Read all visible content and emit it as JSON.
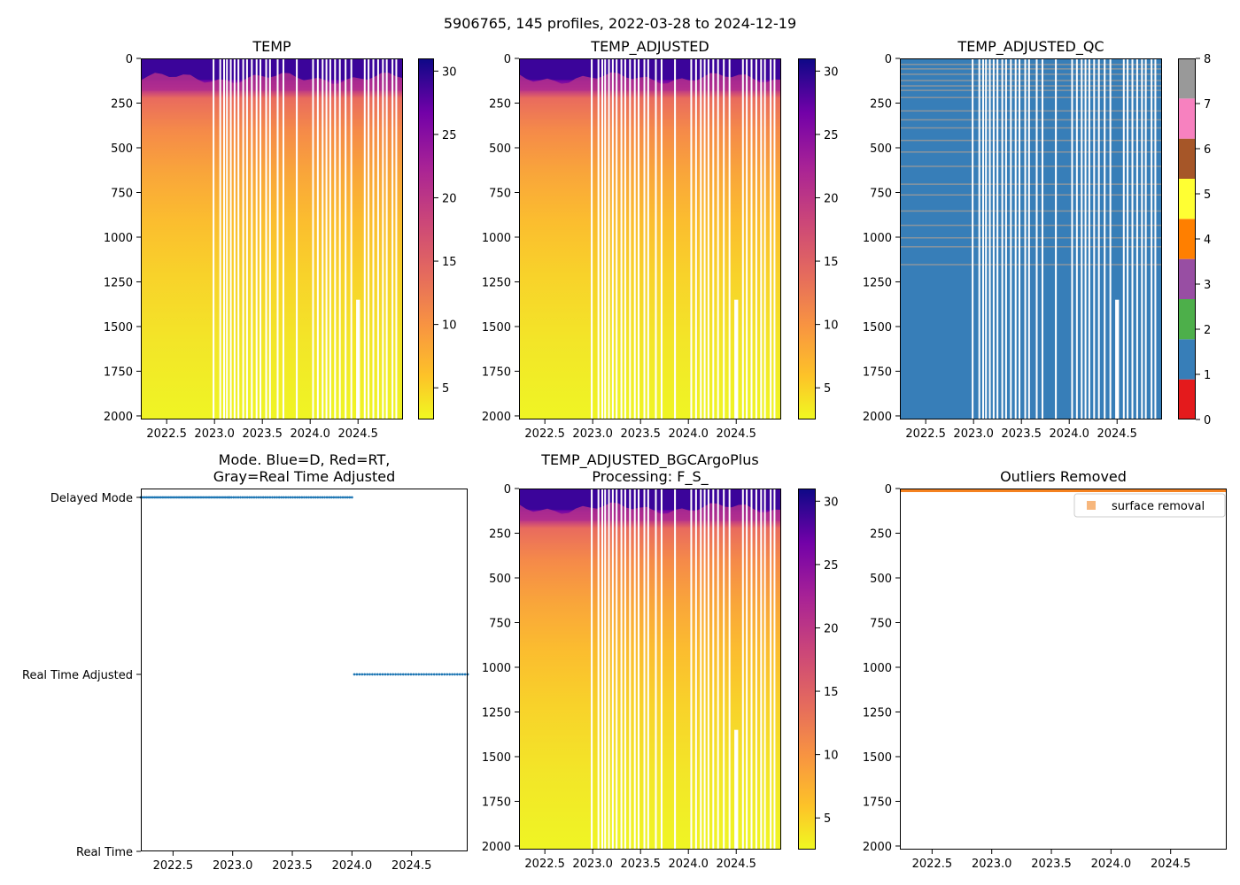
{
  "figure": {
    "suptitle": "5906765, 145 profiles, 2022-03-28 to 2024-12-19"
  },
  "colors": {
    "profile_mode_points": "#1f77b4",
    "outliers_points": "#f58220",
    "legend_marker": "#f7b77d",
    "data_gap": "#ffffff",
    "plasma_top": "#0d0887",
    "plasma_mid": "#cc4778",
    "plasma_bottom": "#f0f921"
  },
  "chart_data": [
    {
      "id": "temp",
      "type": "heatmap",
      "title": "TEMP",
      "x_ticks": [
        "2022.5",
        "2023.0",
        "2023.5",
        "2024.0",
        "2024.5"
      ],
      "x_tick_values": [
        2022.5,
        2023.0,
        2023.5,
        2024.0,
        2024.5
      ],
      "xlim": [
        2022.23,
        2024.97
      ],
      "y_ticks": [
        "0",
        "250",
        "500",
        "750",
        "1000",
        "1250",
        "1500",
        "1750",
        "2000"
      ],
      "y_tick_values": [
        0,
        250,
        500,
        750,
        1000,
        1250,
        1500,
        1750,
        2000
      ],
      "ylim": [
        2020,
        0
      ],
      "colormap": "plasma_r",
      "colorbar_ticks": [
        "5",
        "10",
        "15",
        "20",
        "25",
        "30"
      ],
      "colorbar_tick_values": [
        5,
        10,
        15,
        20,
        25,
        30
      ],
      "colorbar_range": [
        2.5,
        31
      ],
      "mixed_layer_depth_m": 160,
      "gap_profiles": [
        2022.99,
        2023.06,
        2023.1,
        2023.13,
        2023.17,
        2023.21,
        2023.25,
        2023.3,
        2023.34,
        2023.39,
        2023.44,
        2023.48,
        2023.54,
        2023.58,
        2023.66,
        2023.72,
        2023.86,
        2024.03,
        2024.08,
        2024.13,
        2024.17,
        2024.21,
        2024.26,
        2024.31,
        2024.37,
        2024.43,
        2024.57,
        2024.61,
        2024.66,
        2024.71,
        2024.76,
        2024.8,
        2024.86,
        2024.9
      ],
      "missing_block": {
        "x_from": 2024.48,
        "x_to": 2024.52,
        "depth_from": 1350,
        "depth_to": 2020
      }
    },
    {
      "id": "temp_adjusted",
      "type": "heatmap",
      "title": "TEMP_ADJUSTED",
      "x_ticks": [
        "2022.5",
        "2023.0",
        "2023.5",
        "2024.0",
        "2024.5"
      ],
      "x_tick_values": [
        2022.5,
        2023.0,
        2023.5,
        2024.0,
        2024.5
      ],
      "xlim": [
        2022.23,
        2024.97
      ],
      "y_ticks": [
        "0",
        "250",
        "500",
        "750",
        "1000",
        "1250",
        "1500",
        "1750",
        "2000"
      ],
      "y_tick_values": [
        0,
        250,
        500,
        750,
        1000,
        1250,
        1500,
        1750,
        2000
      ],
      "ylim": [
        2020,
        0
      ],
      "colormap": "plasma_r",
      "colorbar_ticks": [
        "5",
        "10",
        "15",
        "20",
        "25",
        "30"
      ],
      "colorbar_tick_values": [
        5,
        10,
        15,
        20,
        25,
        30
      ],
      "colorbar_range": [
        2.5,
        31
      ],
      "mixed_layer_depth_m": 160,
      "gap_profiles": [
        2022.99,
        2023.06,
        2023.1,
        2023.13,
        2023.17,
        2023.21,
        2023.25,
        2023.3,
        2023.34,
        2023.39,
        2023.44,
        2023.48,
        2023.54,
        2023.58,
        2023.66,
        2023.72,
        2023.86,
        2024.03,
        2024.08,
        2024.13,
        2024.17,
        2024.21,
        2024.26,
        2024.31,
        2024.37,
        2024.43,
        2024.57,
        2024.61,
        2024.66,
        2024.71,
        2024.76,
        2024.8,
        2024.86,
        2024.9
      ],
      "missing_block": {
        "x_from": 2024.48,
        "x_to": 2024.52,
        "depth_from": 1350,
        "depth_to": 2020
      }
    },
    {
      "id": "temp_adjusted_qc",
      "type": "heatmap",
      "title": "TEMP_ADJUSTED_QC",
      "x_ticks": [
        "2022.5",
        "2023.0",
        "2023.5",
        "2024.0",
        "2024.5"
      ],
      "x_tick_values": [
        2022.5,
        2023.0,
        2023.5,
        2024.0,
        2024.5
      ],
      "xlim": [
        2022.23,
        2024.97
      ],
      "y_ticks": [
        "0",
        "250",
        "500",
        "750",
        "1000",
        "1250",
        "1500",
        "1750",
        "2000"
      ],
      "y_tick_values": [
        0,
        250,
        500,
        750,
        1000,
        1250,
        1500,
        1750,
        2000
      ],
      "ylim": [
        2020,
        0
      ],
      "colorbar_ticks": [
        "0",
        "1",
        "2",
        "3",
        "4",
        "5",
        "6",
        "7",
        "8"
      ],
      "colorbar_tick_values": [
        0,
        1,
        2,
        3,
        4,
        5,
        6,
        7,
        8
      ],
      "colorbar_range": [
        0,
        8
      ],
      "qc_colors": [
        "#e41a1c",
        "#377eb8",
        "#4daf4a",
        "#984ea3",
        "#ff7f00",
        "#ffff33",
        "#a65628",
        "#f781bf",
        "#999999"
      ],
      "dominant_flag": 1,
      "flag8_depths": [
        30,
        55,
        85,
        120,
        150,
        175,
        215,
        290,
        340,
        385,
        455,
        520,
        600,
        700,
        760,
        850,
        930,
        1000,
        1050,
        1150
      ],
      "gap_profiles": [
        2022.99,
        2023.06,
        2023.1,
        2023.13,
        2023.17,
        2023.21,
        2023.25,
        2023.3,
        2023.34,
        2023.39,
        2023.44,
        2023.48,
        2023.54,
        2023.58,
        2023.66,
        2023.72,
        2023.86,
        2024.03,
        2024.08,
        2024.13,
        2024.17,
        2024.21,
        2024.26,
        2024.31,
        2024.37,
        2024.43,
        2024.57,
        2024.61,
        2024.66,
        2024.71,
        2024.76,
        2024.8,
        2024.86,
        2024.9
      ],
      "missing_block": {
        "x_from": 2024.48,
        "x_to": 2024.52,
        "depth_from": 1350,
        "depth_to": 2020
      }
    },
    {
      "id": "mode",
      "type": "scatter",
      "title_line1": "Mode. Blue=D, Red=RT,",
      "title_line2": "Gray=Real Time Adjusted",
      "x_ticks": [
        "2022.5",
        "2023.0",
        "2023.5",
        "2024.0",
        "2024.5"
      ],
      "x_tick_values": [
        2022.5,
        2023.0,
        2023.5,
        2024.0,
        2024.5
      ],
      "xlim": [
        2022.23,
        2024.97
      ],
      "y_categories": [
        "Real Time",
        "Real Time Adjusted",
        "Delayed Mode"
      ],
      "y_category_values": [
        0,
        1,
        2
      ],
      "ylim": [
        0,
        2.05
      ],
      "series": [
        {
          "name": "Delayed Mode",
          "y": 2,
          "x_from": 2022.23,
          "x_to": 2024.0,
          "dense_until": 2022.97,
          "count": 100
        },
        {
          "name": "Real Time Adjusted",
          "y": 1,
          "x_from": 2024.02,
          "x_to": 2024.97,
          "count": 45
        }
      ]
    },
    {
      "id": "temp_bgcargoplus",
      "type": "heatmap",
      "title_line1": "TEMP_ADJUSTED_BGCArgoPlus",
      "title_line2": "Processing: F_S_",
      "x_ticks": [
        "2022.5",
        "2023.0",
        "2023.5",
        "2024.0",
        "2024.5"
      ],
      "x_tick_values": [
        2022.5,
        2023.0,
        2023.5,
        2024.0,
        2024.5
      ],
      "xlim": [
        2022.23,
        2024.97
      ],
      "y_ticks": [
        "0",
        "250",
        "500",
        "750",
        "1000",
        "1250",
        "1500",
        "1750",
        "2000"
      ],
      "y_tick_values": [
        0,
        250,
        500,
        750,
        1000,
        1250,
        1500,
        1750,
        2000
      ],
      "ylim": [
        2020,
        0
      ],
      "colormap": "plasma_r",
      "colorbar_ticks": [
        "5",
        "10",
        "15",
        "20",
        "25",
        "30"
      ],
      "colorbar_tick_values": [
        5,
        10,
        15,
        20,
        25,
        30
      ],
      "colorbar_range": [
        2.5,
        31
      ],
      "mixed_layer_depth_m": 160,
      "gap_profiles": [
        2022.99,
        2023.06,
        2023.1,
        2023.13,
        2023.17,
        2023.21,
        2023.25,
        2023.3,
        2023.34,
        2023.39,
        2023.44,
        2023.48,
        2023.54,
        2023.58,
        2023.66,
        2023.72,
        2023.86,
        2024.03,
        2024.08,
        2024.13,
        2024.17,
        2024.21,
        2024.26,
        2024.31,
        2024.37,
        2024.43,
        2024.57,
        2024.61,
        2024.66,
        2024.71,
        2024.76,
        2024.8,
        2024.86,
        2024.9
      ],
      "missing_block": {
        "x_from": 2024.48,
        "x_to": 2024.52,
        "depth_from": 1350,
        "depth_to": 2020
      }
    },
    {
      "id": "outliers",
      "type": "scatter",
      "title": "Outliers Removed",
      "x_ticks": [
        "2022.5",
        "2023.0",
        "2023.5",
        "2024.0",
        "2024.5"
      ],
      "x_tick_values": [
        2022.5,
        2023.0,
        2023.5,
        2024.0,
        2024.5
      ],
      "xlim": [
        2022.23,
        2024.97
      ],
      "y_ticks": [
        "0",
        "250",
        "500",
        "750",
        "1000",
        "1250",
        "1500",
        "1750",
        "2000"
      ],
      "y_tick_values": [
        0,
        250,
        500,
        750,
        1000,
        1250,
        1500,
        1750,
        2000
      ],
      "ylim": [
        2020,
        0
      ],
      "series": [
        {
          "name": "surface removal",
          "depth_from": 0,
          "depth_to": 20,
          "x_from": 2022.23,
          "x_to": 2024.97
        }
      ],
      "legend": {
        "label": "surface removal",
        "placement": "top-right"
      }
    }
  ]
}
